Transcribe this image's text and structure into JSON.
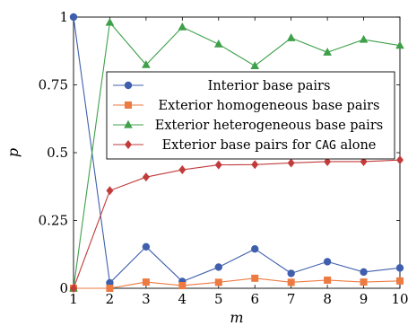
{
  "chart_data": {
    "type": "line",
    "xlabel": "m",
    "ylabel": "p",
    "x": [
      1,
      2,
      3,
      4,
      5,
      6,
      7,
      8,
      9,
      10
    ],
    "xlim": [
      1,
      10
    ],
    "ylim": [
      0,
      1
    ],
    "x_ticks": [
      "1",
      "2",
      "3",
      "4",
      "5",
      "6",
      "7",
      "8",
      "9",
      "10"
    ],
    "y_ticks": [
      {
        "value": 0,
        "label": "0"
      },
      {
        "value": 0.25,
        "label": "0.25"
      },
      {
        "value": 0.5,
        "label": "0.5"
      },
      {
        "value": 0.75,
        "label": "0.75"
      },
      {
        "value": 1,
        "label": "1"
      }
    ],
    "legend_placement": "center",
    "series": [
      {
        "name": "Interior base pairs",
        "color": "#3f5fad",
        "marker": "circle",
        "values": [
          1.0,
          0.02,
          0.153,
          0.025,
          0.078,
          0.145,
          0.055,
          0.098,
          0.06,
          0.075
        ]
      },
      {
        "name": "Exterior homogeneous base pairs",
        "color": "#ec7a41",
        "marker": "square",
        "values": [
          0.0,
          0.0,
          0.023,
          0.01,
          0.022,
          0.037,
          0.022,
          0.03,
          0.023,
          0.027
        ]
      },
      {
        "name": "Exterior heterogeneous base pairs",
        "color": "#3ea04a",
        "marker": "triangle",
        "values": [
          0.0,
          0.98,
          0.824,
          0.963,
          0.9,
          0.82,
          0.923,
          0.87,
          0.917,
          0.895
        ]
      },
      {
        "name_prefix": "Exterior base pairs for ",
        "name_code": "CAG",
        "name_suffix": " alone",
        "color": "#c23b3b",
        "marker": "diamond",
        "values": [
          0.0,
          0.36,
          0.41,
          0.437,
          0.455,
          0.456,
          0.462,
          0.467,
          0.467,
          0.473
        ]
      }
    ]
  }
}
